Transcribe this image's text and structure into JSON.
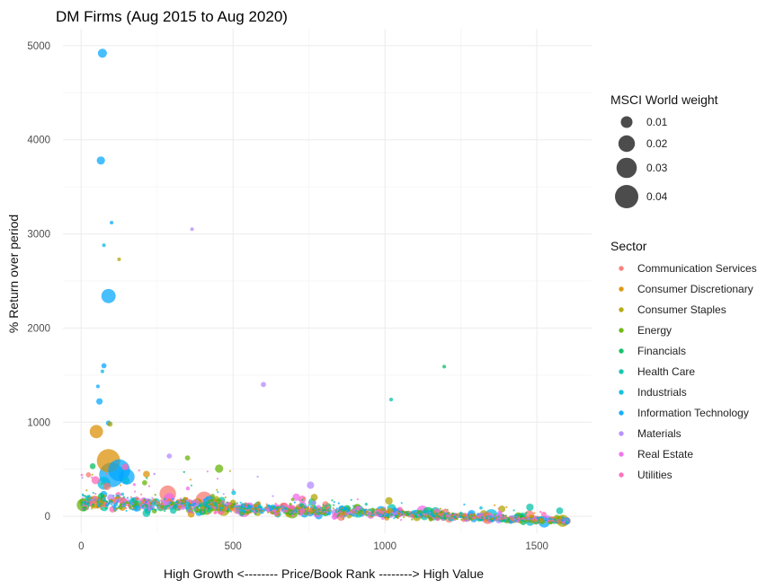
{
  "chart_data": {
    "type": "scatter",
    "title": "DM Firms (Aug 2015 to Aug 2020)",
    "xlabel": "High Growth <-------- Price/Book Rank --------> High Value",
    "ylabel": "% Return over period",
    "xlim": [
      -60,
      1680
    ],
    "ylim": [
      -180,
      5180
    ],
    "x_ticks": [
      0,
      500,
      1000,
      1500
    ],
    "y_ticks": [
      0,
      1000,
      2000,
      3000,
      4000,
      5000
    ],
    "grid": true,
    "size_legend": {
      "title": "MSCI World weight",
      "entries": [
        "0.01",
        "0.02",
        "0.03",
        "0.04"
      ],
      "values": [
        0.01,
        0.02,
        0.03,
        0.04
      ]
    },
    "color_legend": {
      "title": "Sector",
      "entries": [
        {
          "name": "Communication Services",
          "color": "#F8766D"
        },
        {
          "name": "Consumer Discretionary",
          "color": "#DB8E00"
        },
        {
          "name": "Consumer Staples",
          "color": "#AEA200"
        },
        {
          "name": "Energy",
          "color": "#64B200"
        },
        {
          "name": "Financials",
          "color": "#00BD5C"
        },
        {
          "name": "Health Care",
          "color": "#00C1A7"
        },
        {
          "name": "Industrials",
          "color": "#00BADE"
        },
        {
          "name": "Information Technology",
          "color": "#00A6FF"
        },
        {
          "name": "Materials",
          "color": "#B385FF"
        },
        {
          "name": "Real Estate",
          "color": "#EF67EB"
        },
        {
          "name": "Utilities",
          "color": "#FF63B6"
        }
      ]
    },
    "highlight_points": [
      {
        "x": 70,
        "y": 4920,
        "weight": 0.006,
        "sector": "Information Technology"
      },
      {
        "x": 65,
        "y": 3780,
        "weight": 0.005,
        "sector": "Information Technology"
      },
      {
        "x": 100,
        "y": 3120,
        "weight": 0.001,
        "sector": "Information Technology"
      },
      {
        "x": 75,
        "y": 2880,
        "weight": 0.001,
        "sector": "Industrials"
      },
      {
        "x": 125,
        "y": 2730,
        "weight": 0.001,
        "sector": "Consumer Staples"
      },
      {
        "x": 365,
        "y": 3050,
        "weight": 0.001,
        "sector": "Materials"
      },
      {
        "x": 90,
        "y": 2340,
        "weight": 0.015,
        "sector": "Information Technology"
      },
      {
        "x": 75,
        "y": 1600,
        "weight": 0.002,
        "sector": "Information Technology"
      },
      {
        "x": 70,
        "y": 1540,
        "weight": 0.001,
        "sector": "Industrials"
      },
      {
        "x": 55,
        "y": 1380,
        "weight": 0.001,
        "sector": "Information Technology"
      },
      {
        "x": 60,
        "y": 1220,
        "weight": 0.003,
        "sector": "Information Technology"
      },
      {
        "x": 90,
        "y": 990,
        "weight": 0.002,
        "sector": "Information Technology"
      },
      {
        "x": 95,
        "y": 980,
        "weight": 0.002,
        "sector": "Consumer Staples"
      },
      {
        "x": 600,
        "y": 1400,
        "weight": 0.002,
        "sector": "Materials"
      },
      {
        "x": 1020,
        "y": 1240,
        "weight": 0.001,
        "sector": "Health Care"
      },
      {
        "x": 1195,
        "y": 1590,
        "weight": 0.001,
        "sector": "Financials"
      },
      {
        "x": 50,
        "y": 900,
        "weight": 0.013,
        "sector": "Consumer Discretionary"
      },
      {
        "x": 90,
        "y": 590,
        "weight": 0.04,
        "sector": "Consumer Discretionary"
      },
      {
        "x": 125,
        "y": 490,
        "weight": 0.035,
        "sector": "Information Technology"
      },
      {
        "x": 100,
        "y": 440,
        "weight": 0.045,
        "sector": "Information Technology"
      },
      {
        "x": 150,
        "y": 420,
        "weight": 0.018,
        "sector": "Information Technology"
      },
      {
        "x": 75,
        "y": 350,
        "weight": 0.012,
        "sector": "Industrials"
      },
      {
        "x": 285,
        "y": 240,
        "weight": 0.02,
        "sector": "Communication Services"
      },
      {
        "x": 405,
        "y": 170,
        "weight": 0.022,
        "sector": "Communication Services"
      },
      {
        "x": 45,
        "y": 150,
        "weight": 0.012,
        "sector": "Consumer Discretionary"
      },
      {
        "x": 220,
        "y": 120,
        "weight": 0.012,
        "sector": "Industrials"
      },
      {
        "x": 350,
        "y": 620,
        "weight": 0.002,
        "sector": "Energy"
      },
      {
        "x": 290,
        "y": 640,
        "weight": 0.002,
        "sector": "Materials"
      },
      {
        "x": 755,
        "y": 330,
        "weight": 0.004,
        "sector": "Materials"
      },
      {
        "x": 1195,
        "y": 20,
        "weight": 0.008,
        "sector": "Communication Services"
      },
      {
        "x": 1475,
        "y": 10,
        "weight": 0.007,
        "sector": "Communication Services"
      }
    ],
    "background_points_note": ""
  }
}
